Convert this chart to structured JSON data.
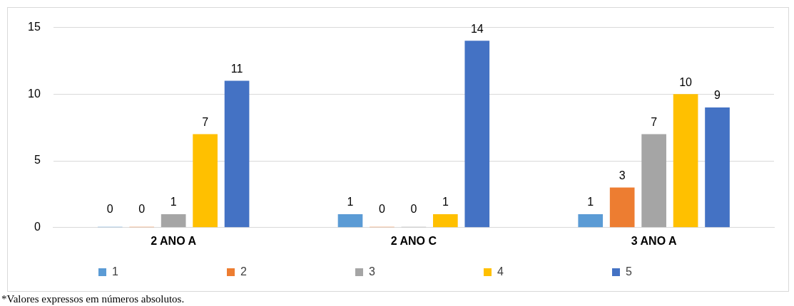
{
  "chart_data": {
    "type": "bar",
    "categories": [
      "2 ANO A",
      "2 ANO C",
      "3 ANO A"
    ],
    "series": [
      {
        "name": "1",
        "color": "#5b9bd5",
        "values": [
          0,
          1,
          1
        ]
      },
      {
        "name": "2",
        "color": "#ed7d31",
        "values": [
          0,
          0,
          3
        ]
      },
      {
        "name": "3",
        "color": "#a5a5a5",
        "values": [
          1,
          0,
          7
        ]
      },
      {
        "name": "4",
        "color": "#ffc000",
        "values": [
          7,
          1,
          10
        ]
      },
      {
        "name": "5",
        "color": "#4472c4",
        "values": [
          11,
          14,
          9
        ]
      }
    ],
    "ylim": [
      0,
      15
    ],
    "yticks": [
      0,
      5,
      10,
      15
    ],
    "grid": "y",
    "legend": "bottom",
    "data_labels": true,
    "annotations": [
      "*Valores expressos em números absolutos."
    ]
  }
}
